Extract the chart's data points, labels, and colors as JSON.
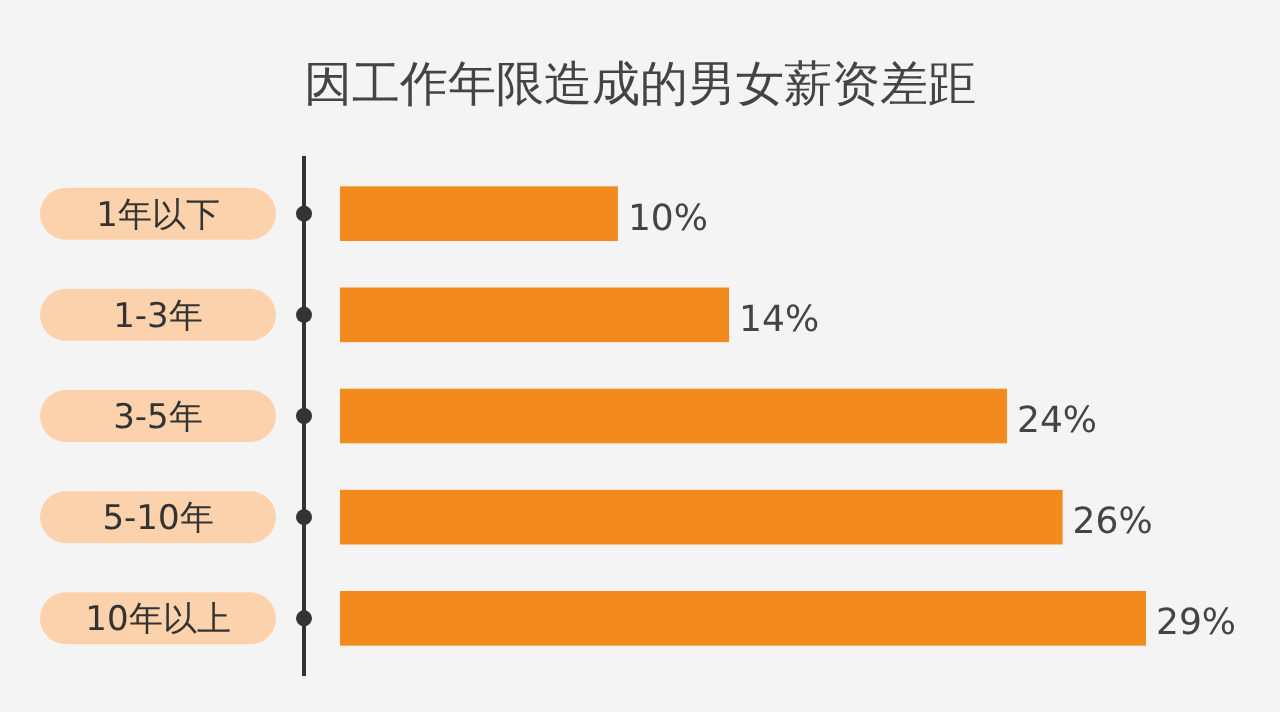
{
  "chart_data": {
    "type": "bar",
    "orientation": "horizontal",
    "title": "因工作年限造成的男女薪资差距",
    "categories": [
      "1年以下",
      "1-3年",
      "3-5年",
      "5-10年",
      "10年以上"
    ],
    "values": [
      10,
      14,
      24,
      26,
      29
    ],
    "value_labels": [
      "10%",
      "14%",
      "24%",
      "26%",
      "29%"
    ],
    "color": "#f28a1e"
  }
}
